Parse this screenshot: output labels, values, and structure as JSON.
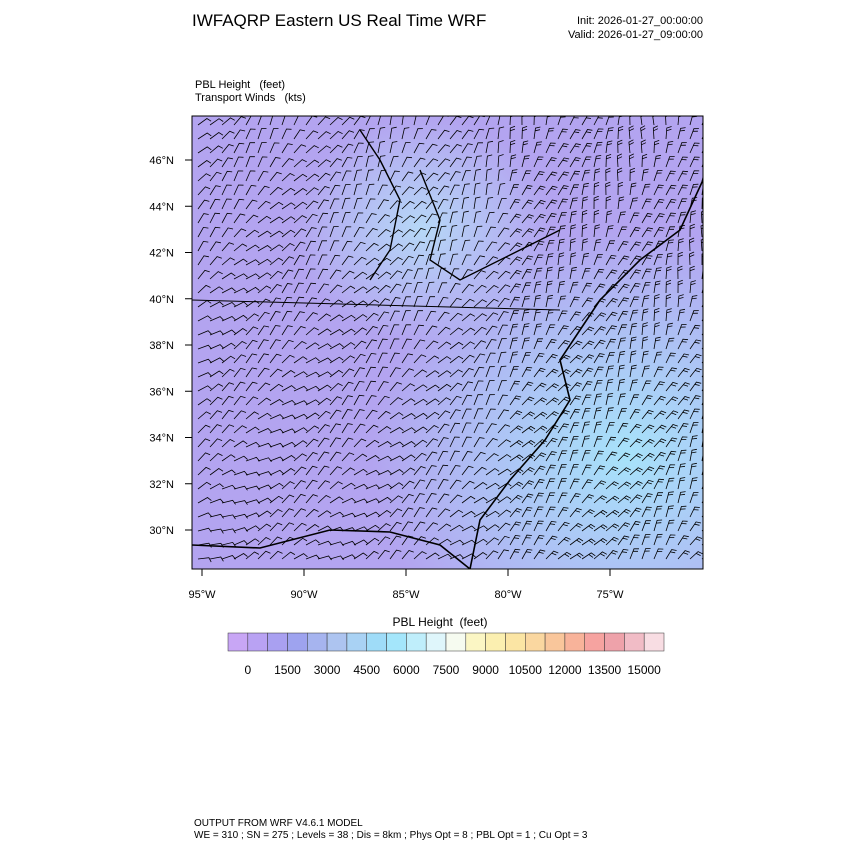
{
  "header": {
    "title": "IWFAQRP Eastern US Real Time WRF",
    "init": "Init: 2026-01-27_00:00:00",
    "valid": "Valid: 2026-01-27_09:00:00"
  },
  "field_labels": [
    "PBL Height   (feet)",
    "Transport Winds   (kts)"
  ],
  "map": {
    "lat_labels": [
      "46°N",
      "44°N",
      "42°N",
      "40°N",
      "38°N",
      "36°N",
      "34°N",
      "32°N",
      "30°N"
    ],
    "lon_labels": [
      "95°W",
      "90°W",
      "85°W",
      "80°W",
      "75°W"
    ]
  },
  "colorbar": {
    "title": "PBL Height  (feet)",
    "labels": [
      "0",
      "1500",
      "3000",
      "4500",
      "6000",
      "7500",
      "9000",
      "10500",
      "12000",
      "13500",
      "15000"
    ],
    "colors": [
      "#c8a6f5",
      "#b9a2f3",
      "#a9a0f1",
      "#9ea3ef",
      "#a6b4ef",
      "#adc4f0",
      "#a9d2f4",
      "#9fdcf8",
      "#a4e6fb",
      "#bfeefb",
      "#dff6fb",
      "#f6fbf0",
      "#fbf6c4",
      "#fbefb0",
      "#fbe5a4",
      "#fad7a0",
      "#f9c69b",
      "#f8b39a",
      "#f6a3a0",
      "#eea2aa",
      "#f1bcc6",
      "#f8dde3"
    ]
  },
  "footer": [
    "OUTPUT FROM WRF V4.6.1 MODEL",
    "WE = 310 ; SN = 275 ; Levels = 38 ; Dis = 8km ; Phys Opt = 8 ; PBL Opt = 1 ; Cu Opt = 3"
  ]
}
